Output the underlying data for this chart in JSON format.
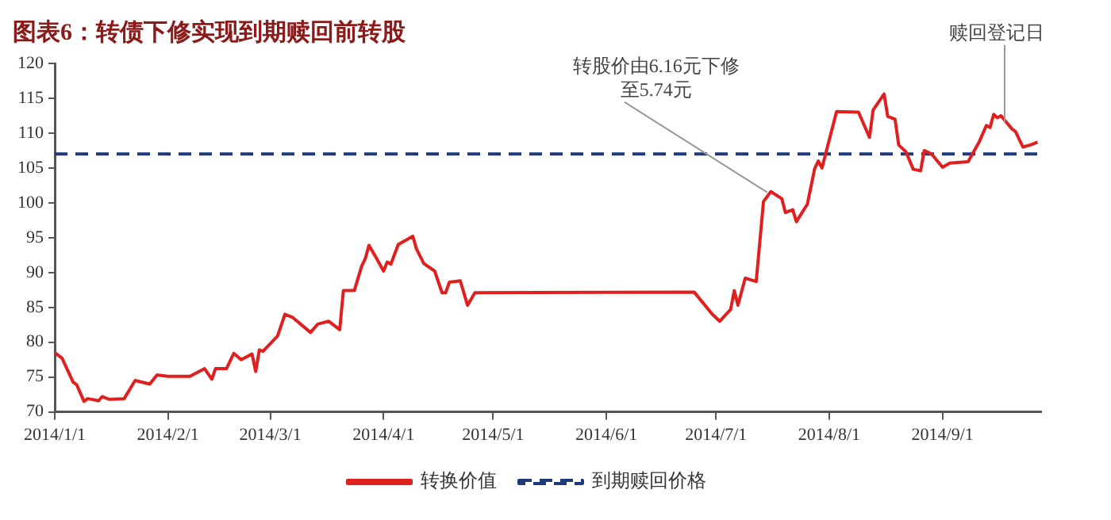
{
  "chart_data": {
    "type": "line",
    "title": "图表6：转债下修实现到期赎回前转股",
    "xlim": [
      "2014-01-01",
      "2014-09-28"
    ],
    "xticks": [
      {
        "value": "2014-01-01",
        "label": "2014/1/1"
      },
      {
        "value": "2014-02-01",
        "label": "2014/2/1"
      },
      {
        "value": "2014-03-01",
        "label": "2014/3/1"
      },
      {
        "value": "2014-04-01",
        "label": "2014/4/1"
      },
      {
        "value": "2014-05-01",
        "label": "2014/5/1"
      },
      {
        "value": "2014-06-01",
        "label": "2014/6/1"
      },
      {
        "value": "2014-07-01",
        "label": "2014/7/1"
      },
      {
        "value": "2014-08-01",
        "label": "2014/8/1"
      },
      {
        "value": "2014-09-01",
        "label": "2014/9/1"
      }
    ],
    "ylim": [
      70,
      120
    ],
    "yticks": [
      70,
      75,
      80,
      85,
      90,
      95,
      100,
      105,
      110,
      115,
      120
    ],
    "grid": false,
    "legend": "bottom",
    "marker": "none",
    "series": [
      {
        "name": "转换价值",
        "color": "#e0201e",
        "line_style": "solid",
        "x": [
          "2014-01-01",
          "2014-01-03",
          "2014-01-06",
          "2014-01-07",
          "2014-01-09",
          "2014-01-10",
          "2014-01-13",
          "2014-01-14",
          "2014-01-16",
          "2014-01-20",
          "2014-01-23",
          "2014-01-27",
          "2014-01-29",
          "2014-02-01",
          "2014-02-07",
          "2014-02-11",
          "2014-02-13",
          "2014-02-14",
          "2014-02-17",
          "2014-02-19",
          "2014-02-21",
          "2014-02-24",
          "2014-02-25",
          "2014-02-26",
          "2014-02-27",
          "2014-03-03",
          "2014-03-05",
          "2014-03-07",
          "2014-03-12",
          "2014-03-14",
          "2014-03-17",
          "2014-03-20",
          "2014-03-21",
          "2014-03-24",
          "2014-03-26",
          "2014-03-27",
          "2014-03-28",
          "2014-03-30",
          "2014-04-01",
          "2014-04-02",
          "2014-04-03",
          "2014-04-05",
          "2014-04-09",
          "2014-04-10",
          "2014-04-12",
          "2014-04-15",
          "2014-04-17",
          "2014-04-18",
          "2014-04-19",
          "2014-04-22",
          "2014-04-24",
          "2014-04-26",
          "2014-06-25",
          "2014-06-30",
          "2014-07-02",
          "2014-07-05",
          "2014-07-06",
          "2014-07-07",
          "2014-07-09",
          "2014-07-12",
          "2014-07-14",
          "2014-07-16",
          "2014-07-19",
          "2014-07-20",
          "2014-07-22",
          "2014-07-23",
          "2014-07-26",
          "2014-07-28",
          "2014-07-29",
          "2014-07-30",
          "2014-08-03",
          "2014-08-09",
          "2014-08-12",
          "2014-08-13",
          "2014-08-16",
          "2014-08-17",
          "2014-08-19",
          "2014-08-20",
          "2014-08-22",
          "2014-08-24",
          "2014-08-26",
          "2014-08-27",
          "2014-08-29",
          "2014-09-01",
          "2014-09-03",
          "2014-09-08",
          "2014-09-11",
          "2014-09-13",
          "2014-09-14",
          "2014-09-15",
          "2014-09-16",
          "2014-09-17",
          "2014-09-20",
          "2014-09-21",
          "2014-09-23",
          "2014-09-25",
          "2014-09-27"
        ],
        "values": [
          78.5,
          77.7,
          74.3,
          73.9,
          71.5,
          71.9,
          71.6,
          72.2,
          71.8,
          71.9,
          74.5,
          74.0,
          75.3,
          75.1,
          75.1,
          76.2,
          74.7,
          76.2,
          76.2,
          78.4,
          77.5,
          78.3,
          75.8,
          78.9,
          78.7,
          80.9,
          84.0,
          83.6,
          81.4,
          82.6,
          83.0,
          81.8,
          87.4,
          87.4,
          90.9,
          92.0,
          93.9,
          92.1,
          90.2,
          91.5,
          91.2,
          94.0,
          95.2,
          93.4,
          91.3,
          90.2,
          87.1,
          87.1,
          88.6,
          88.8,
          85.3,
          87.1,
          87.2,
          84.0,
          83.0,
          84.7,
          87.4,
          85.3,
          89.2,
          88.7,
          100.2,
          101.6,
          100.6,
          98.6,
          99.0,
          97.3,
          99.8,
          104.9,
          106.0,
          105.0,
          113.1,
          113.0,
          109.4,
          113.3,
          115.6,
          112.4,
          112.0,
          108.3,
          107.3,
          104.8,
          104.6,
          107.5,
          107.0,
          105.1,
          105.7,
          105.9,
          108.7,
          111.1,
          110.8,
          112.7,
          112.2,
          112.5,
          110.6,
          110.2,
          108.0,
          108.3,
          108.7
        ]
      },
      {
        "name": "到期赎回价格",
        "color": "#1f3a7a",
        "line_style": "dashed",
        "x": [
          "2014-01-01",
          "2014-09-28"
        ],
        "values": [
          107,
          107
        ]
      }
    ],
    "annotations": [
      {
        "text": "转股价由6.16元下修至5.74元",
        "x": "2014-07-15",
        "y": 101.5
      },
      {
        "text": "赎回登记日",
        "x": "2014-09-18",
        "y": 111.5
      }
    ]
  }
}
